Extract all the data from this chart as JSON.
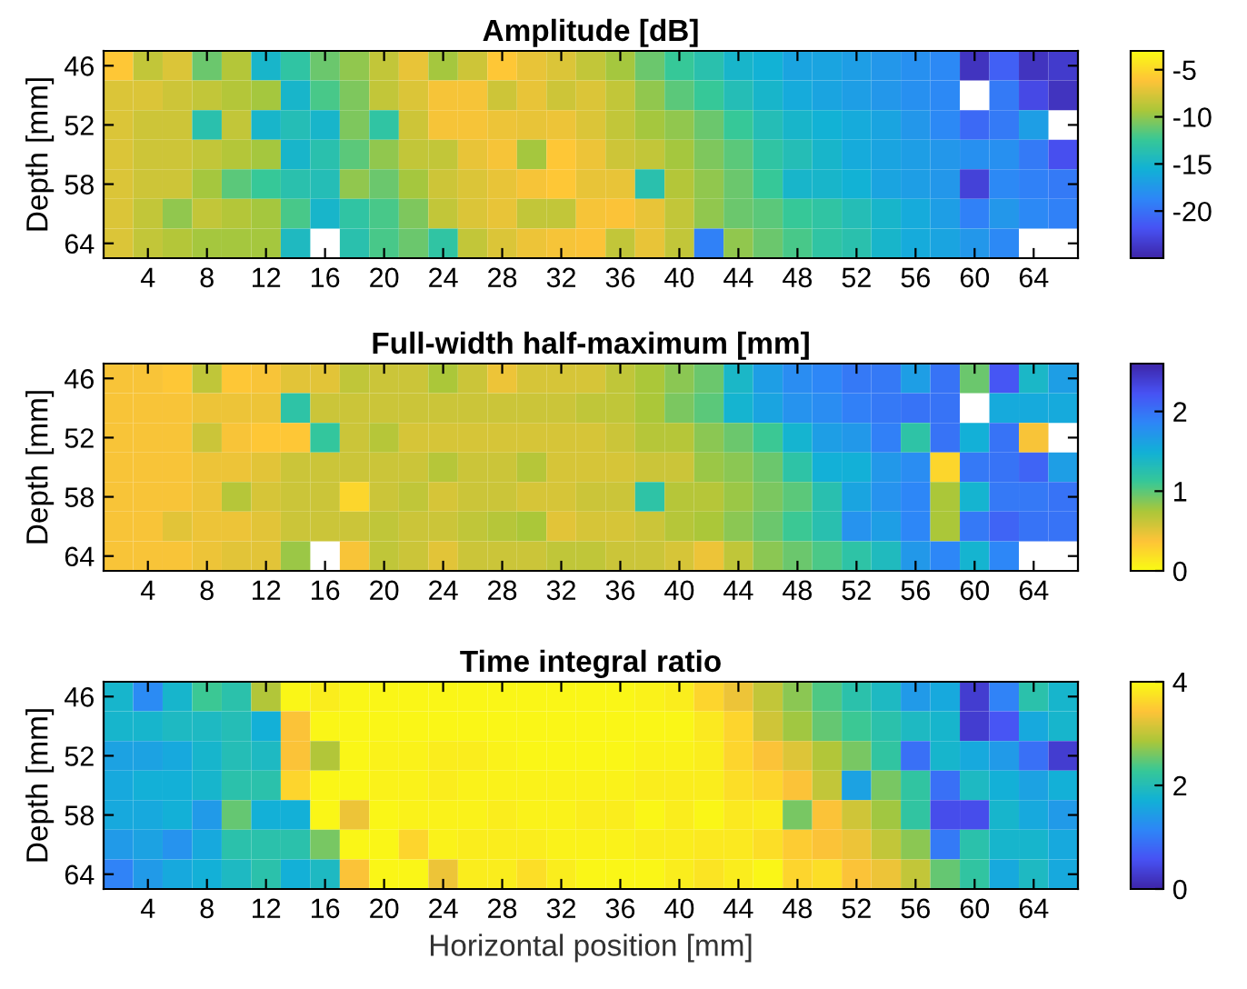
{
  "chart_data": [
    {
      "type": "heatmap",
      "title": "Amplitude [dB]",
      "ylabel": "Depth [mm]",
      "categories": [
        null,
        "4",
        null,
        "8",
        null,
        "12",
        null,
        "16",
        null,
        "20",
        null,
        "24",
        null,
        "28",
        null,
        "32",
        null,
        "36",
        null,
        "40",
        null,
        "44",
        null,
        "48",
        null,
        "52",
        null,
        "56",
        null,
        "60",
        null,
        "64",
        null
      ],
      "y_categories": [
        "46",
        null,
        "52",
        null,
        "58",
        null,
        "64"
      ],
      "clim": [
        -25,
        -3
      ],
      "cticks": [
        -20,
        -15,
        -10,
        -5
      ],
      "cells": [
        [
          -6,
          -8.5,
          -7.5,
          -11,
          -9,
          -15,
          -13,
          -11,
          -10,
          -8.5,
          -7,
          -9.5,
          -8,
          -6,
          -7,
          -7.5,
          -8.5,
          -9.5,
          -11,
          -12.5,
          -13.5,
          -15,
          -15.5,
          -16.5,
          -16.5,
          -17,
          -17.5,
          -18,
          -18.5,
          -24,
          -21,
          -24,
          -23.5
        ],
        [
          -7.5,
          -7.5,
          -8,
          -8.5,
          -9,
          -9.5,
          -15,
          -12,
          -10.5,
          -8.5,
          -7.5,
          -6.5,
          -6.5,
          -8,
          -7,
          -8,
          -7.5,
          -8.5,
          -10,
          -11.5,
          -12.5,
          -14,
          -15,
          -16,
          -16.5,
          -17,
          -17.5,
          -18,
          -18.5,
          null,
          -19.5,
          -22.5,
          -24
        ],
        [
          -7.5,
          -8,
          -8,
          -13.5,
          -8.5,
          -15,
          -14,
          -15,
          -10.5,
          -13,
          -8,
          -6.5,
          -6.5,
          -6.8,
          -7,
          -6.8,
          -7.5,
          -8.5,
          -9.5,
          -10,
          -11,
          -12.5,
          -14,
          -15,
          -15.5,
          -16,
          -16.5,
          -17.5,
          -18.5,
          -20.5,
          -19.5,
          -17,
          null
        ],
        [
          -7.5,
          -8,
          -8,
          -8.5,
          -9,
          -9.5,
          -15,
          -13.5,
          -11.5,
          -10,
          -8.5,
          -8.5,
          -7,
          -6.5,
          -9.5,
          -6,
          -6.8,
          -8,
          -8.5,
          -9.5,
          -10.5,
          -11.5,
          -13,
          -14,
          -15,
          -16,
          -16.5,
          -17,
          -17.5,
          -18,
          -18,
          -19.5,
          -22
        ],
        [
          -7.5,
          -8,
          -8,
          -9.5,
          -11.5,
          -12.5,
          -13.5,
          -14,
          -10,
          -11,
          -9.5,
          -8,
          -7.5,
          -7,
          -6.5,
          -6,
          -7,
          -7,
          -13.5,
          -9,
          -10,
          -11,
          -12.5,
          -15,
          -15,
          -15.5,
          -16.5,
          -17,
          -17.5,
          -23,
          -18.5,
          -19,
          -19.5
        ],
        [
          -7.5,
          -8.5,
          -10,
          -8.5,
          -9,
          -9.5,
          -12,
          -15,
          -13,
          -12,
          -10.5,
          -8.5,
          -7.5,
          -7,
          -8.5,
          -8.5,
          -6.5,
          -6.3,
          -7,
          -8.5,
          -10,
          -11,
          -11.5,
          -12.5,
          -13,
          -14,
          -15,
          -16,
          -17,
          -19,
          -17.5,
          -18.5,
          -19
        ],
        [
          -7.5,
          -8.5,
          -9,
          -9.5,
          -9.5,
          -9.5,
          -14.5,
          null,
          -13.5,
          -12,
          -11,
          -13,
          -8.5,
          -7.5,
          -6.8,
          -6.5,
          -6.3,
          -8.5,
          -7,
          -8.5,
          -19,
          -10,
          -11,
          -12,
          -13,
          -13.5,
          -15,
          -16,
          -16.5,
          -17.5,
          -18.5,
          null,
          null
        ]
      ]
    },
    {
      "type": "heatmap",
      "title": "Full-width half-maximum [mm]",
      "ylabel": "Depth [mm]",
      "categories": [
        null,
        "4",
        null,
        "8",
        null,
        "12",
        null,
        "16",
        null,
        "20",
        null,
        "24",
        null,
        "28",
        null,
        "32",
        null,
        "36",
        null,
        "40",
        null,
        "44",
        null,
        "48",
        null,
        "52",
        null,
        "56",
        null,
        "60",
        null,
        "64",
        null
      ],
      "y_categories": [
        "46",
        null,
        "52",
        null,
        "58",
        null,
        "64"
      ],
      "clim": [
        0,
        2.6
      ],
      "cticks": [
        0,
        1,
        2
      ],
      "cells": [
        [
          0.4,
          0.4,
          0.35,
          0.65,
          0.35,
          0.4,
          0.5,
          0.5,
          0.65,
          0.6,
          0.6,
          0.75,
          0.6,
          0.45,
          0.55,
          0.55,
          0.55,
          0.65,
          0.75,
          0.85,
          0.95,
          1.4,
          1.65,
          1.8,
          1.85,
          1.95,
          1.95,
          1.65,
          2.0,
          0.95,
          2.2,
          1.4,
          1.65
        ],
        [
          0.4,
          0.4,
          0.4,
          0.45,
          0.45,
          0.45,
          1.2,
          0.6,
          0.6,
          0.6,
          0.6,
          0.6,
          0.6,
          0.6,
          0.6,
          0.6,
          0.65,
          0.65,
          0.75,
          0.9,
          1.0,
          1.45,
          1.6,
          1.75,
          1.8,
          1.9,
          1.95,
          2.0,
          2.0,
          null,
          1.55,
          1.55,
          1.55
        ],
        [
          0.4,
          0.4,
          0.4,
          0.6,
          0.4,
          0.35,
          0.35,
          1.15,
          0.6,
          0.7,
          0.55,
          0.55,
          0.55,
          0.55,
          0.55,
          0.55,
          0.55,
          0.6,
          0.7,
          0.7,
          0.85,
          0.95,
          1.1,
          1.45,
          1.65,
          1.7,
          1.9,
          1.2,
          2.0,
          1.5,
          2.0,
          0.4,
          null
        ],
        [
          0.4,
          0.4,
          0.4,
          0.45,
          0.45,
          0.5,
          0.6,
          0.6,
          0.6,
          0.6,
          0.6,
          0.7,
          0.6,
          0.6,
          0.7,
          0.55,
          0.55,
          0.55,
          0.6,
          0.6,
          0.8,
          0.85,
          0.95,
          1.2,
          1.5,
          1.5,
          1.7,
          1.8,
          0.25,
          1.95,
          2.0,
          2.1,
          1.65
        ],
        [
          0.4,
          0.4,
          0.4,
          0.45,
          0.7,
          0.55,
          0.6,
          0.6,
          0.25,
          0.6,
          0.65,
          0.55,
          0.6,
          0.6,
          0.55,
          0.55,
          0.6,
          0.6,
          1.2,
          0.7,
          0.7,
          0.8,
          0.9,
          1.0,
          1.25,
          1.6,
          1.75,
          1.85,
          0.75,
          1.45,
          1.95,
          1.95,
          2.0
        ],
        [
          0.4,
          0.4,
          0.5,
          0.45,
          0.45,
          0.5,
          0.6,
          0.6,
          0.6,
          0.65,
          0.6,
          0.6,
          0.65,
          0.7,
          0.75,
          0.5,
          0.55,
          0.55,
          0.6,
          0.7,
          0.75,
          0.85,
          0.95,
          1.1,
          1.25,
          1.75,
          1.65,
          1.85,
          0.75,
          1.95,
          2.1,
          2.0,
          2.0
        ],
        [
          0.4,
          0.4,
          0.4,
          0.45,
          0.5,
          0.5,
          0.8,
          null,
          0.4,
          0.65,
          0.6,
          0.5,
          0.6,
          0.6,
          0.6,
          0.65,
          0.65,
          0.6,
          0.6,
          0.55,
          0.45,
          0.65,
          0.85,
          0.95,
          1.05,
          1.2,
          1.35,
          1.7,
          1.85,
          1.45,
          1.85,
          null,
          null
        ]
      ]
    },
    {
      "type": "heatmap",
      "title": "Time integral ratio",
      "ylabel": "Depth [mm]",
      "xlabel": "Horizontal position [mm]",
      "categories": [
        null,
        "4",
        null,
        "8",
        null,
        "12",
        null,
        "16",
        null,
        "20",
        null,
        "24",
        null,
        "28",
        null,
        "32",
        null,
        "36",
        null,
        "40",
        null,
        "44",
        null,
        "48",
        null,
        "52",
        null,
        "56",
        null,
        "60",
        null,
        "64",
        null
      ],
      "y_categories": [
        "46",
        null,
        "52",
        null,
        "58",
        null,
        "64"
      ],
      "clim": [
        0,
        4
      ],
      "cticks": [
        0,
        2,
        4
      ],
      "cells": [
        [
          1.8,
          1.2,
          1.8,
          2.3,
          2.1,
          2.9,
          3.95,
          3.85,
          3.95,
          3.95,
          3.95,
          3.95,
          3.95,
          3.95,
          3.95,
          3.95,
          3.95,
          3.95,
          3.9,
          3.85,
          3.6,
          3.3,
          3.0,
          2.7,
          2.4,
          2.1,
          1.9,
          1.4,
          1.6,
          0.3,
          1.1,
          2.1,
          1.8
        ],
        [
          1.8,
          1.8,
          1.9,
          1.9,
          2.0,
          1.7,
          3.4,
          3.95,
          3.95,
          3.95,
          3.95,
          3.95,
          3.95,
          3.95,
          3.95,
          3.95,
          3.95,
          3.95,
          3.95,
          3.95,
          3.8,
          3.6,
          3.1,
          2.8,
          2.5,
          2.3,
          2.1,
          1.9,
          1.8,
          0.3,
          0.6,
          1.6,
          1.8
        ],
        [
          1.5,
          1.5,
          1.6,
          1.8,
          2.0,
          1.9,
          3.4,
          2.9,
          3.95,
          3.9,
          3.9,
          3.85,
          3.85,
          3.9,
          3.95,
          3.95,
          3.95,
          3.95,
          3.9,
          3.9,
          3.85,
          3.6,
          3.4,
          3.2,
          2.9,
          2.6,
          2.2,
          0.9,
          1.8,
          1.6,
          1.4,
          0.9,
          0.3
        ],
        [
          1.6,
          1.7,
          1.7,
          1.8,
          2.1,
          2.1,
          3.6,
          3.95,
          3.95,
          3.9,
          3.9,
          3.85,
          3.9,
          3.9,
          3.9,
          3.9,
          3.9,
          3.9,
          3.85,
          3.85,
          3.85,
          3.7,
          3.6,
          3.4,
          3.0,
          1.5,
          2.6,
          2.2,
          0.9,
          1.9,
          1.7,
          1.5,
          1.7
        ],
        [
          1.6,
          1.6,
          1.7,
          1.4,
          2.5,
          1.7,
          1.7,
          3.95,
          3.3,
          3.95,
          3.9,
          3.9,
          3.9,
          3.85,
          3.9,
          3.9,
          3.85,
          3.85,
          3.95,
          3.85,
          3.95,
          3.8,
          3.85,
          2.6,
          3.4,
          3.1,
          2.8,
          2.2,
          0.5,
          0.5,
          1.8,
          1.6,
          1.4
        ],
        [
          1.4,
          1.5,
          1.3,
          1.6,
          2.1,
          2.1,
          2.1,
          2.6,
          3.95,
          3.95,
          3.6,
          3.9,
          3.85,
          3.85,
          3.85,
          3.9,
          3.9,
          3.9,
          3.85,
          3.85,
          3.8,
          3.8,
          3.7,
          3.5,
          3.4,
          3.3,
          3.0,
          2.7,
          1.0,
          2.1,
          1.8,
          1.8,
          1.6
        ],
        [
          1.1,
          1.4,
          1.6,
          1.7,
          1.9,
          2.1,
          1.7,
          1.9,
          3.4,
          3.95,
          3.95,
          3.3,
          3.85,
          3.85,
          3.7,
          3.85,
          3.95,
          3.95,
          3.95,
          3.85,
          3.75,
          3.85,
          3.95,
          3.6,
          3.7,
          3.4,
          3.3,
          3.0,
          2.5,
          2.2,
          1.6,
          1.9,
          1.6
        ]
      ]
    }
  ]
}
